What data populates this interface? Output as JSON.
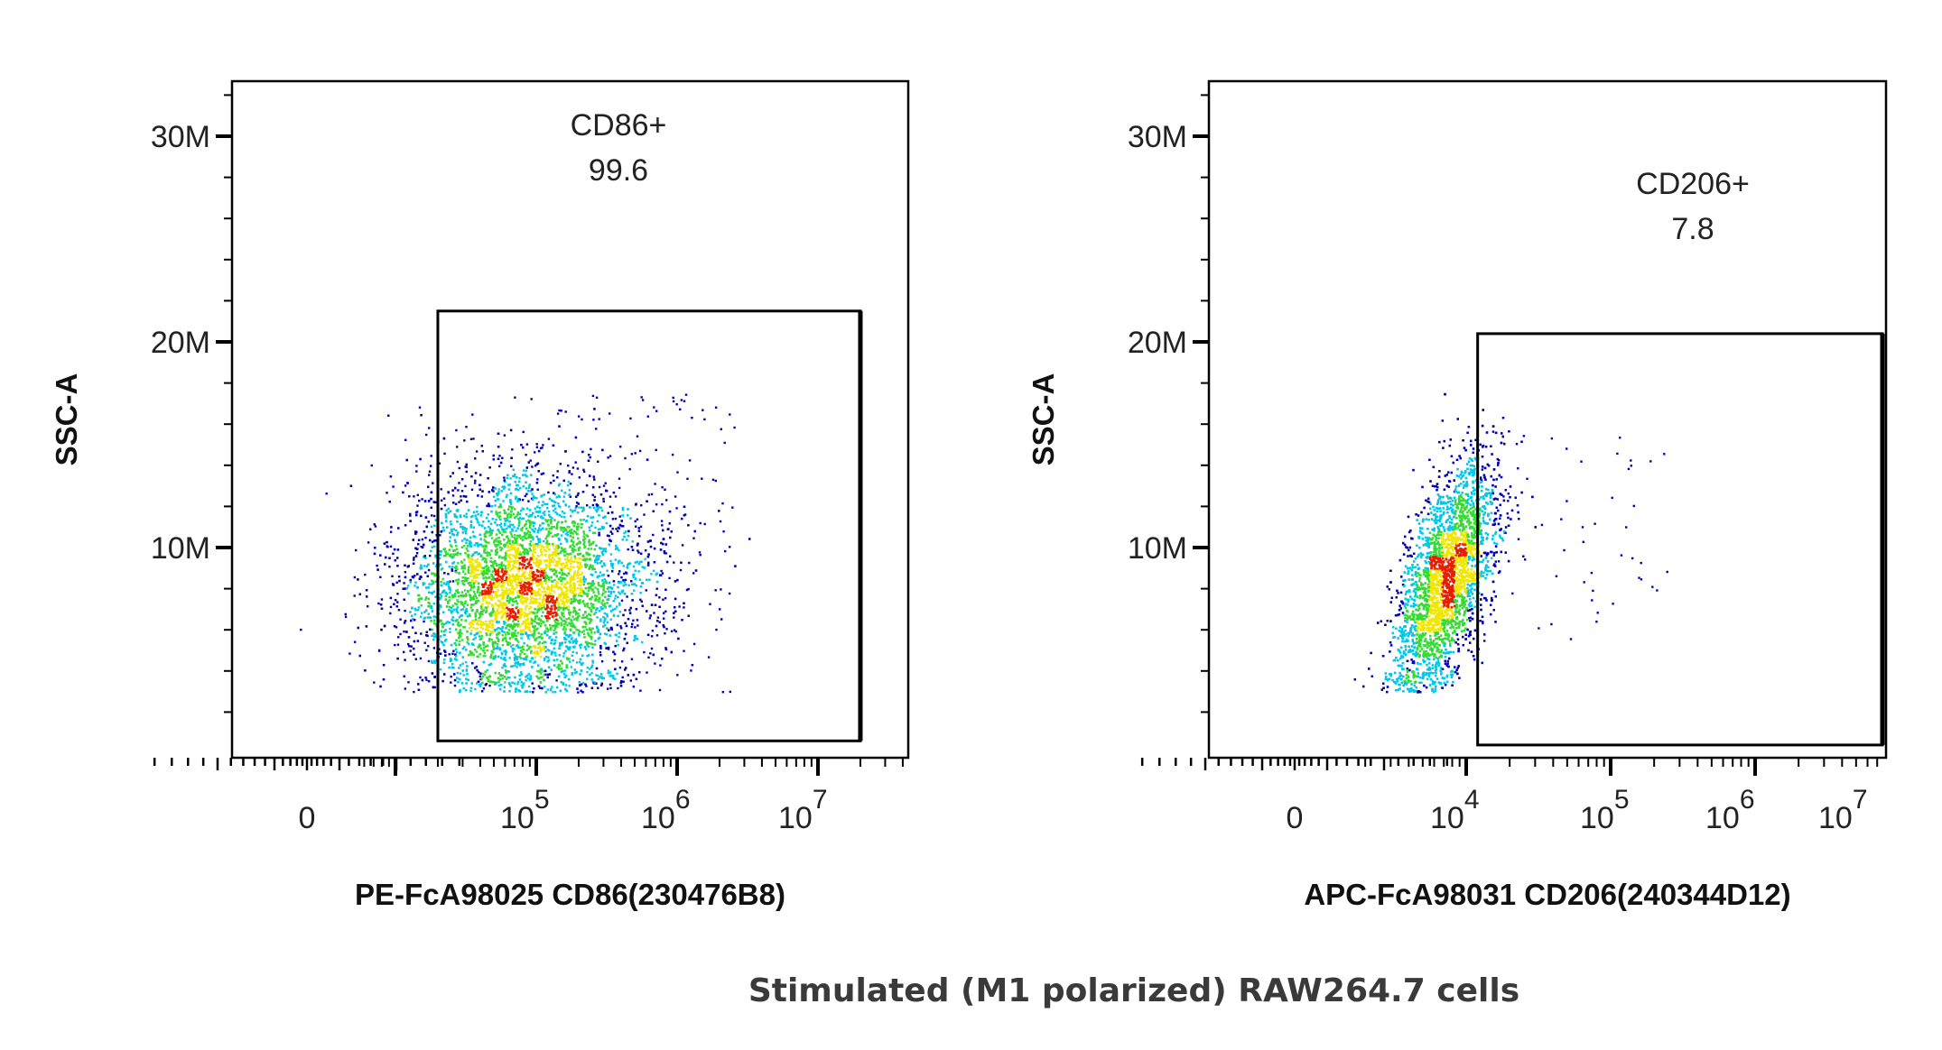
{
  "caption": "Stimulated (M1 polarized) RAW264.7 cells",
  "chart_data": [
    {
      "type": "scatter",
      "style": "density pseudocolor dot plot",
      "xlabel": "PE-FcA98025 CD86(230476B8)",
      "ylabel": "SSC-A",
      "xscale": "biexponential",
      "x_ticks": [
        {
          "label": "0",
          "base": "",
          "exp": ""
        },
        {
          "label": "10^5",
          "base": "10",
          "exp": "5"
        },
        {
          "label": "10^6",
          "base": "10",
          "exp": "6"
        },
        {
          "label": "10^7",
          "base": "10",
          "exp": "7"
        }
      ],
      "y_ticks": [
        "10M",
        "20M",
        "30M"
      ],
      "ylim": [
        0,
        33000000
      ],
      "gate": {
        "name": "CD86+",
        "percent": "99.6",
        "x_range": [
          20000,
          20000000
        ],
        "y_range": [
          600000,
          21500000
        ]
      },
      "density_colors": [
        "#0000b4",
        "#00c8e6",
        "#32dc32",
        "#f0e600",
        "#e61e00"
      ]
    },
    {
      "type": "scatter",
      "style": "density pseudocolor dot plot",
      "xlabel": "APC-FcA98031 CD206(240344D12)",
      "ylabel": "SSC-A",
      "xscale": "biexponential",
      "x_ticks": [
        {
          "label": "0",
          "base": "",
          "exp": ""
        },
        {
          "label": "10^4",
          "base": "10",
          "exp": "4"
        },
        {
          "label": "10^5",
          "base": "10",
          "exp": "5"
        },
        {
          "label": "10^6",
          "base": "10",
          "exp": "6"
        },
        {
          "label": "10^7",
          "base": "10",
          "exp": "7"
        }
      ],
      "y_ticks": [
        "10M",
        "20M",
        "30M"
      ],
      "ylim": [
        0,
        33000000
      ],
      "gate": {
        "name": "CD206+",
        "percent": "7.8",
        "x_range": [
          12000,
          12000000
        ],
        "y_range": [
          400000,
          20400000
        ]
      },
      "density_colors": [
        "#0000b4",
        "#00c8e6",
        "#32dc32",
        "#f0e600",
        "#e61e00"
      ]
    }
  ]
}
